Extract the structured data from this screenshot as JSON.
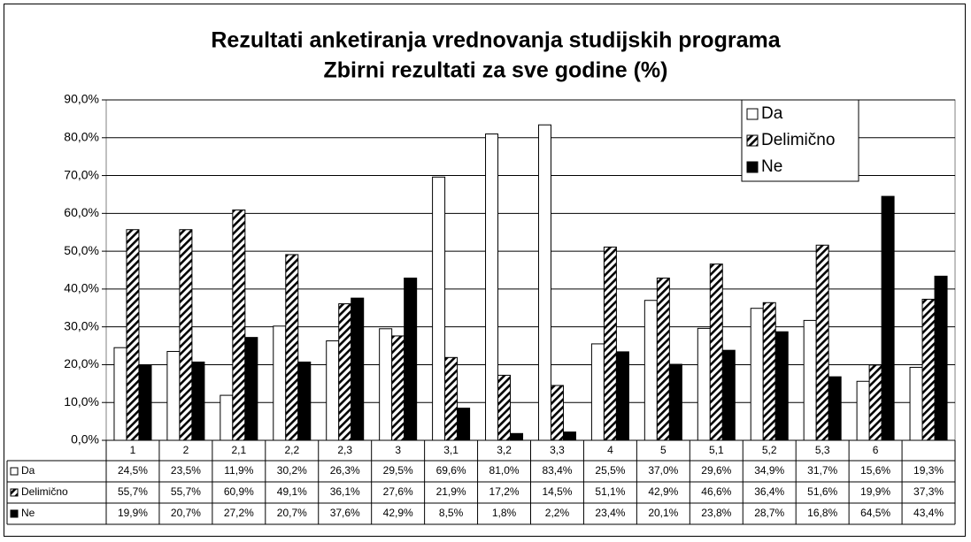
{
  "chart_data": {
    "type": "bar",
    "title": "Rezultati anketiranja vrednovanja studijskih programa",
    "subtitle": "Zbirni rezultati za sve godine (%)",
    "categories": [
      "1",
      "2",
      "2,1",
      "2,2",
      "2,3",
      "3",
      "3,1",
      "3,2",
      "3,3",
      "4",
      "5",
      "5,1",
      "5,2",
      "5,3",
      "6",
      null
    ],
    "series": [
      {
        "name": "Da",
        "color": "#ffffff",
        "hatch": false,
        "values": [
          24.5,
          23.5,
          11.9,
          30.2,
          26.3,
          29.5,
          69.6,
          81.0,
          83.4,
          25.5,
          37.0,
          29.6,
          34.9,
          31.7,
          15.6,
          19.3
        ],
        "value_labels": [
          "24,5%",
          "23,5%",
          "11,9%",
          "30,2%",
          "26,3%",
          "29,5%",
          "69,6%",
          "81,0%",
          "83,4%",
          "25,5%",
          "37,0%",
          "29,6%",
          "34,9%",
          "31,7%",
          "15,6%",
          "19,3%"
        ]
      },
      {
        "name": "Delimično",
        "color": "#000000",
        "hatch": true,
        "values": [
          55.7,
          55.7,
          60.9,
          49.1,
          36.1,
          27.6,
          21.9,
          17.2,
          14.5,
          51.1,
          42.9,
          46.6,
          36.4,
          51.6,
          19.9,
          37.3
        ],
        "value_labels": [
          "55,7%",
          "55,7%",
          "60,9%",
          "49,1%",
          "36,1%",
          "27,6%",
          "21,9%",
          "17,2%",
          "14,5%",
          "51,1%",
          "42,9%",
          "46,6%",
          "36,4%",
          "51,6%",
          "19,9%",
          "37,3%"
        ]
      },
      {
        "name": "Ne",
        "color": "#000000",
        "hatch": false,
        "values": [
          19.9,
          20.7,
          27.2,
          20.7,
          37.6,
          42.9,
          8.5,
          1.8,
          2.2,
          23.4,
          20.1,
          23.8,
          28.7,
          16.8,
          64.5,
          43.4
        ],
        "value_labels": [
          "19,9%",
          "20,7%",
          "27,2%",
          "20,7%",
          "37,6%",
          "42,9%",
          "8,5%",
          "1,8%",
          "2,2%",
          "23,4%",
          "20,1%",
          "23,8%",
          "28,7%",
          "16,8%",
          "64,5%",
          "43,4%"
        ]
      }
    ],
    "ylim": [
      0,
      90
    ],
    "yticks": [
      {
        "value": 0,
        "label": "0,0%"
      },
      {
        "value": 10,
        "label": "10,0%"
      },
      {
        "value": 20,
        "label": "20,0%"
      },
      {
        "value": 30,
        "label": "30,0%"
      },
      {
        "value": 40,
        "label": "40,0%"
      },
      {
        "value": 50,
        "label": "50,0%"
      },
      {
        "value": 60,
        "label": "60,0%"
      },
      {
        "value": 70,
        "label": "70,0%"
      },
      {
        "value": 80,
        "label": "80,0%"
      },
      {
        "value": 90,
        "label": "90,0%"
      }
    ],
    "grid": true,
    "legend": "top-right"
  }
}
